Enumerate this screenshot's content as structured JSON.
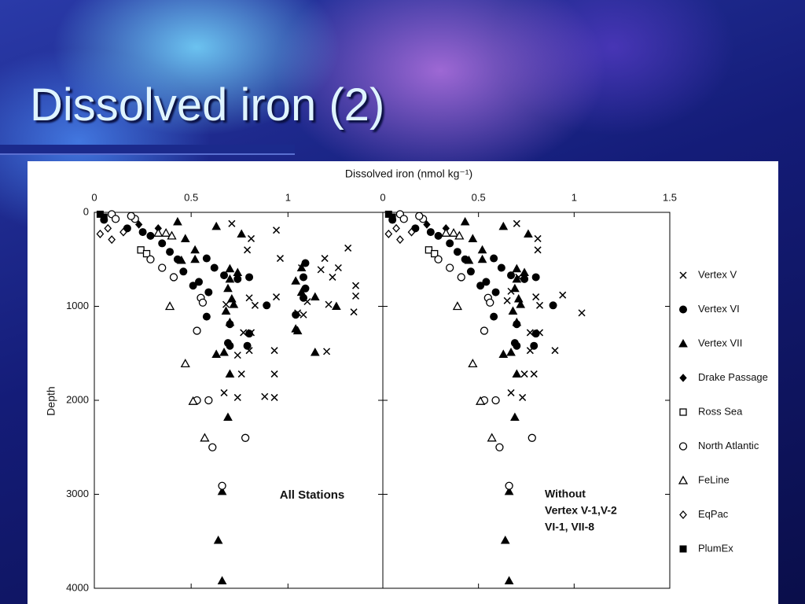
{
  "slide": {
    "title": "Dissolved iron (2)"
  },
  "chart_data": [
    {
      "type": "scatter",
      "x_label": "Dissolved iron (nmol kg⁻¹)",
      "y_label": "Depth",
      "annotation": "All Stations",
      "xlim": [
        0,
        1.49
      ],
      "xticks": [
        0,
        0.5,
        1
      ],
      "ylim": [
        4000,
        0
      ],
      "yticks": [
        0,
        1000,
        2000,
        3000,
        4000
      ],
      "series": [
        {
          "name": "Vertex V",
          "marker": "x",
          "color": "#000000",
          "x": [
            0.71,
            0.81,
            0.79,
            0.94,
            0.96,
            1.07,
            1.19,
            1.31,
            1.17,
            1.23,
            1.26,
            1.35,
            1.35,
            0.8,
            0.83,
            0.94,
            1.1,
            1.05,
            1.08,
            1.21,
            1.34,
            0.68,
            0.77,
            0.81,
            0.8,
            0.93,
            0.74,
            1.2,
            0.93,
            0.76,
            0.67,
            0.74,
            0.88,
            0.93
          ],
          "values": [
            120,
            280,
            400,
            190,
            490,
            590,
            490,
            380,
            610,
            690,
            590,
            780,
            890,
            910,
            990,
            900,
            950,
            1070,
            1090,
            980,
            1060,
            980,
            1280,
            1280,
            1470,
            1470,
            1520,
            1480,
            1720,
            1720,
            1920,
            1970,
            1960,
            1970
          ]
        },
        {
          "name": "Vertex VI",
          "marker": "circle",
          "color": "#000000",
          "x": [
            0.05,
            0.17,
            0.25,
            0.29,
            0.35,
            0.39,
            0.43,
            0.46,
            0.51,
            0.54,
            0.58,
            0.62,
            0.67,
            0.74,
            0.8,
            0.89,
            0.59,
            0.58,
            0.7,
            0.69,
            0.7,
            0.79,
            0.8,
            1.08,
            1.09,
            1.08,
            1.09,
            1.04
          ],
          "values": [
            80,
            170,
            210,
            250,
            330,
            420,
            500,
            630,
            780,
            740,
            490,
            590,
            670,
            710,
            690,
            990,
            850,
            1110,
            1190,
            1390,
            1420,
            1420,
            1290,
            690,
            810,
            910,
            540,
            1090
          ]
        },
        {
          "name": "Vertex VII",
          "marker": "triangle",
          "color": "#000000",
          "x": [
            0.63,
            0.76,
            0.43,
            0.47,
            0.52,
            0.52,
            0.45,
            0.7,
            0.7,
            0.74,
            0.69,
            0.71,
            0.72,
            0.68,
            1.07,
            1.04,
            1.07,
            1.14,
            1.25,
            1.04,
            1.05,
            0.7,
            0.63,
            0.67,
            1.14,
            0.7,
            0.69,
            0.66,
            0.64,
            0.66
          ],
          "values": [
            150,
            230,
            100,
            280,
            400,
            500,
            510,
            600,
            710,
            640,
            810,
            920,
            980,
            1050,
            590,
            730,
            850,
            900,
            1000,
            1240,
            1260,
            1170,
            1510,
            1490,
            1490,
            1720,
            2180,
            2970,
            3490,
            3920
          ]
        },
        {
          "name": "Drake Passage",
          "marker": "diamond",
          "color": "#000000",
          "x": [
            0.23,
            0.33
          ],
          "values": [
            130,
            170
          ]
        },
        {
          "name": "Ross Sea",
          "marker": "open-square",
          "color": "#000000",
          "x": [
            0.24,
            0.27
          ],
          "values": [
            400,
            440
          ]
        },
        {
          "name": "North Atlantic",
          "marker": "open-circle",
          "color": "#000000",
          "x": [
            0.53,
            0.55,
            0.56,
            0.53,
            0.59,
            0.78,
            0.61,
            0.66,
            0.41,
            0.35,
            0.29,
            0.21,
            0.09,
            0.11,
            0.19
          ],
          "values": [
            1260,
            910,
            960,
            2000,
            2000,
            2400,
            2500,
            2910,
            690,
            590,
            500,
            70,
            20,
            70,
            40
          ]
        },
        {
          "name": "FeLine",
          "marker": "open-triangle",
          "color": "#000000",
          "x": [
            0.39,
            0.47,
            0.51,
            0.57,
            0.37,
            0.33,
            0.4
          ],
          "values": [
            1000,
            1610,
            2010,
            2400,
            220,
            220,
            250
          ]
        },
        {
          "name": "EqPac",
          "marker": "open-diamond",
          "color": "#000000",
          "x": [
            0.03,
            0.09,
            0.15,
            0.07
          ],
          "values": [
            230,
            290,
            210,
            170
          ]
        },
        {
          "name": "PlumEx",
          "marker": "square",
          "color": "#000000",
          "x": [
            0.03,
            0.05
          ],
          "values": [
            20,
            50
          ]
        }
      ]
    },
    {
      "type": "scatter",
      "annotation": [
        "Without",
        "Vertex V-1,V-2",
        "VI-1, VII-8"
      ],
      "xlim": [
        0,
        1.5
      ],
      "xticks": [
        0,
        0.5,
        1,
        1.5
      ],
      "ylim": [
        4000,
        0
      ],
      "series": [
        {
          "marker": "x",
          "color": "#000000",
          "x": [
            0.7,
            0.81,
            0.81,
            0.94,
            1.04,
            0.8,
            0.82,
            0.77,
            0.82,
            0.77,
            0.9,
            0.74,
            0.79,
            0.67,
            0.73,
            0.71,
            0.67,
            0.65
          ],
          "values": [
            120,
            280,
            400,
            880,
            1070,
            900,
            990,
            1280,
            1280,
            1470,
            1470,
            1720,
            1720,
            1920,
            1970,
            690,
            840,
            940
          ]
        },
        {
          "marker": "circle",
          "color": "#000000",
          "x": [
            0.05,
            0.17,
            0.25,
            0.29,
            0.35,
            0.39,
            0.43,
            0.46,
            0.51,
            0.54,
            0.58,
            0.62,
            0.67,
            0.74,
            0.8,
            0.89,
            0.59,
            0.58,
            0.7,
            0.69,
            0.7,
            0.79,
            0.8
          ],
          "values": [
            80,
            170,
            210,
            250,
            330,
            420,
            500,
            630,
            780,
            740,
            490,
            590,
            670,
            710,
            690,
            990,
            850,
            1110,
            1190,
            1390,
            1420,
            1420,
            1290
          ]
        },
        {
          "marker": "triangle",
          "color": "#000000",
          "x": [
            0.63,
            0.76,
            0.43,
            0.47,
            0.52,
            0.52,
            0.45,
            0.7,
            0.7,
            0.74,
            0.69,
            0.71,
            0.72,
            0.68,
            0.7,
            0.63,
            0.67,
            0.7,
            0.69,
            0.66,
            0.64,
            0.66
          ],
          "values": [
            150,
            230,
            100,
            280,
            400,
            500,
            510,
            600,
            710,
            640,
            810,
            920,
            980,
            1050,
            1170,
            1510,
            1490,
            1720,
            2180,
            2970,
            3490,
            3920
          ]
        },
        {
          "marker": "diamond",
          "color": "#000000",
          "x": [
            0.23,
            0.33
          ],
          "values": [
            130,
            170
          ]
        },
        {
          "marker": "open-square",
          "color": "#000000",
          "x": [
            0.24,
            0.27
          ],
          "values": [
            400,
            440
          ]
        },
        {
          "marker": "open-circle",
          "color": "#000000",
          "x": [
            0.53,
            0.55,
            0.56,
            0.53,
            0.59,
            0.78,
            0.61,
            0.66,
            0.41,
            0.35,
            0.29,
            0.21,
            0.09,
            0.11,
            0.19
          ],
          "values": [
            1260,
            910,
            960,
            2000,
            2000,
            2400,
            2500,
            2910,
            690,
            590,
            500,
            70,
            20,
            70,
            40
          ]
        },
        {
          "marker": "open-triangle",
          "color": "#000000",
          "x": [
            0.39,
            0.47,
            0.51,
            0.57,
            0.37,
            0.33,
            0.4
          ],
          "values": [
            1000,
            1610,
            2010,
            2400,
            220,
            220,
            250
          ]
        },
        {
          "marker": "open-diamond",
          "color": "#000000",
          "x": [
            0.03,
            0.09,
            0.15,
            0.07
          ],
          "values": [
            230,
            290,
            210,
            170
          ]
        },
        {
          "marker": "square",
          "color": "#000000",
          "x": [
            0.03,
            0.05
          ],
          "values": [
            20,
            50
          ]
        }
      ]
    }
  ]
}
